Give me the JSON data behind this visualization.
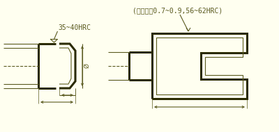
{
  "bg_color": "#FFFFF0",
  "line_color": "#5A5A20",
  "thick_line_color": "#2A2A00",
  "lw_thin": 0.8,
  "lw_thick": 2.2,
  "lw_med": 1.3,
  "ann1": "35~40HRC",
  "ann2": "(渗碳深度0.7~0.9,56~62HRC)",
  "fs": 7.0,
  "fs2": 6.5
}
